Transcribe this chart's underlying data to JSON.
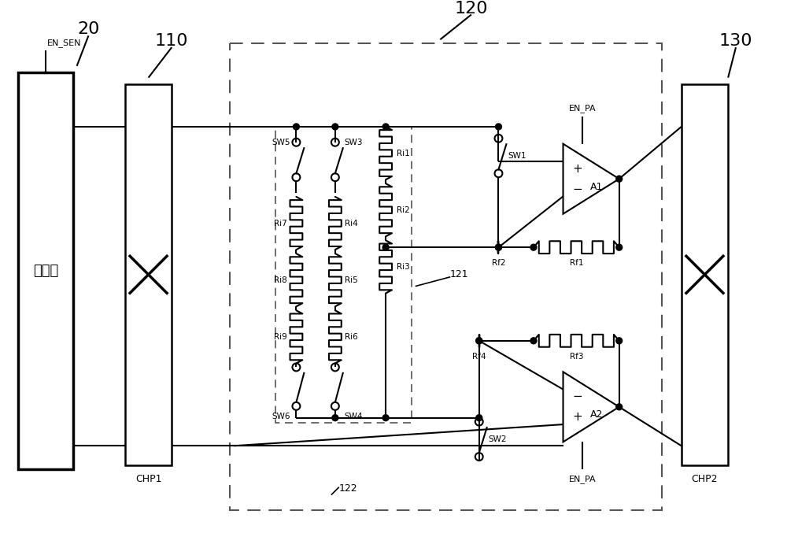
{
  "bg_color": "#ffffff",
  "fig_width": 10.0,
  "fig_height": 6.77,
  "labels": {
    "sensor_text": "传感器",
    "chp1_text": "CHP1",
    "chp2_text": "CHP2",
    "label_20": "20",
    "label_110": "110",
    "label_120": "120",
    "label_130": "130",
    "label_121": "121",
    "label_122": "122",
    "EN_SEN": "EN_SEN",
    "EN_PA_top": "EN_PA",
    "EN_PA_bot": "EN_PA",
    "A1": "A1",
    "A2": "A2",
    "SW1": "SW1",
    "SW2": "SW2",
    "SW3": "SW3",
    "SW4": "SW4",
    "SW5": "SW5",
    "SW6": "SW6",
    "Rf1": "Rf1",
    "Rf2": "Rf2",
    "Rf3": "Rf3",
    "Rf4": "Rf4",
    "Ri1": "Ri1",
    "Ri2": "Ri2",
    "Ri3": "Ri3",
    "Ri4": "Ri4",
    "Ri5": "Ri5",
    "Ri6": "Ri6",
    "Ri7": "Ri7",
    "Ri8": "Ri8",
    "Ri9": "Ri9"
  }
}
